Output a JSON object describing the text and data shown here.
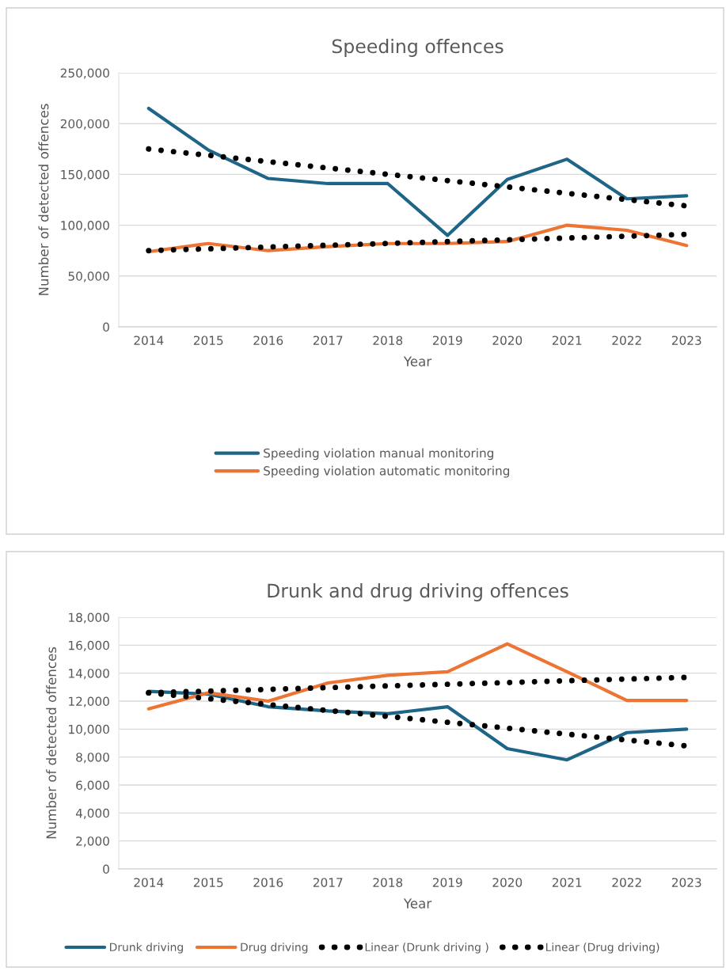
{
  "chart_data": [
    {
      "type": "line",
      "title": "Speeding offences",
      "xlabel": "Year",
      "ylabel": "Number of detected offences",
      "categories": [
        "2014",
        "2015",
        "2016",
        "2017",
        "2018",
        "2019",
        "2020",
        "2021",
        "2022",
        "2023"
      ],
      "series": [
        {
          "name": "Speeding violation manual monitoring",
          "color": "#1f6587",
          "values": [
            215000,
            174000,
            146000,
            141000,
            141000,
            90000,
            145000,
            165000,
            126000,
            129000
          ]
        },
        {
          "name": "Speeding violation automatic monitoring",
          "color": "#ed7433",
          "values": [
            74000,
            82000,
            75000,
            79000,
            82000,
            82000,
            84000,
            100000,
            95000,
            80000
          ]
        },
        {
          "type": "line",
          "color": "#000000",
          "line_style": "dotted",
          "values": [
            175000,
            168800,
            162600,
            156300,
            150100,
            143900,
            137700,
            131400,
            125200,
            119000
          ]
        },
        {
          "type": "line",
          "color": "#000000",
          "line_style": "dotted",
          "values": [
            75000,
            76800,
            78600,
            80300,
            82100,
            83900,
            85700,
            87400,
            89200,
            91000
          ]
        }
      ],
      "ylim": [
        0,
        250000
      ],
      "yticks": [
        0,
        {
          "value": 50000,
          "label": "50,000"
        },
        {
          "value": 100000,
          "label": "100,000"
        },
        {
          "value": 150000,
          "label": "150,000"
        },
        {
          "value": 200000,
          "label": "200,000"
        },
        {
          "value": 250000,
          "label": "250,000"
        }
      ],
      "grid": "y",
      "legend": "bottom",
      "line_style": "solid",
      "marker": "none"
    },
    {
      "type": "line",
      "title": "Drunk and drug driving offences",
      "xlabel": "Year",
      "ylabel": "Number of detected offences",
      "categories": [
        "2014",
        "2015",
        "2016",
        "2017",
        "2018",
        "2019",
        "2020",
        "2021",
        "2022",
        "2023"
      ],
      "series": [
        {
          "name": "Drunk driving",
          "color": "#1f6587",
          "values": [
            12700,
            12500,
            11600,
            11300,
            11100,
            11600,
            8600,
            7800,
            9750,
            10000
          ]
        },
        {
          "name": "Drug driving",
          "color": "#ed7433",
          "values": [
            11450,
            12600,
            12000,
            13300,
            13850,
            14100,
            16100,
            14100,
            12050,
            12050
          ]
        },
        {
          "name": "Linear (Drunk driving )",
          "type": "line",
          "color": "#000000",
          "line_style": "dotted",
          "values": [
            12600,
            12180,
            11760,
            11330,
            10910,
            10490,
            10070,
            9640,
            9220,
            8800
          ]
        },
        {
          "name": "Linear (Drug driving)",
          "type": "line",
          "color": "#000000",
          "line_style": "dotted",
          "values": [
            12600,
            12720,
            12840,
            12970,
            13090,
            13210,
            13330,
            13460,
            13580,
            13700
          ]
        }
      ],
      "ylim": [
        0,
        18000
      ],
      "yticks": [
        0,
        {
          "value": 2000,
          "label": "2,000"
        },
        {
          "value": 4000,
          "label": "4,000"
        },
        {
          "value": 6000,
          "label": "6,000"
        },
        {
          "value": 8000,
          "label": "8,000"
        },
        {
          "value": 10000,
          "label": "10,000"
        },
        {
          "value": 12000,
          "label": "12,000"
        },
        {
          "value": 14000,
          "label": "14,000"
        },
        {
          "value": 16000,
          "label": "16,000"
        },
        {
          "value": 18000,
          "label": "18,000"
        }
      ],
      "grid": "y",
      "legend": "bottom",
      "line_style": "solid",
      "marker": "none"
    }
  ]
}
